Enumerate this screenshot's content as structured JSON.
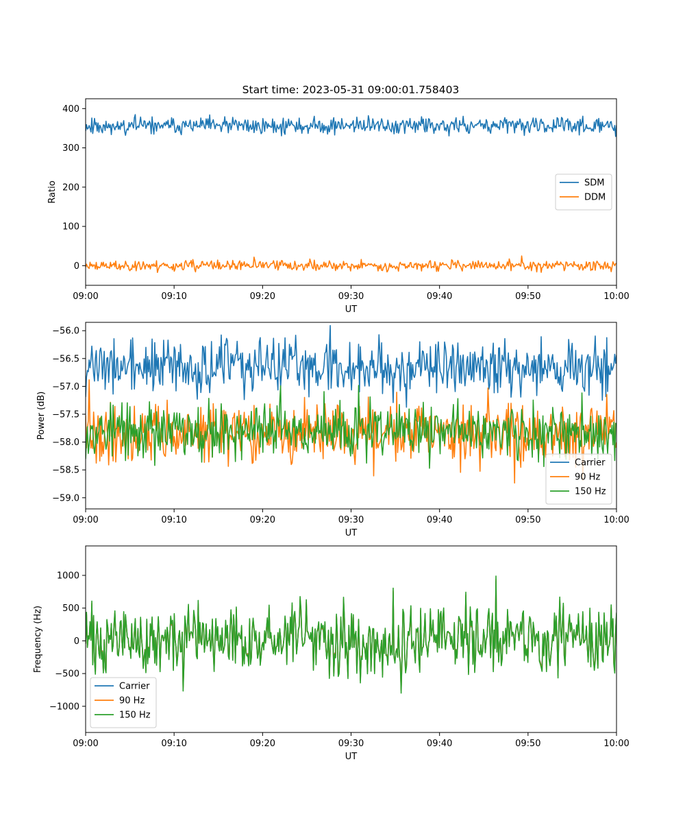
{
  "figure": {
    "title": "Start time: 2023-05-31 09:00:01.758403"
  },
  "chart_data": [
    {
      "type": "line",
      "xlabel": "UT",
      "ylabel": "Ratio",
      "xlim": [
        "09:00",
        "10:00"
      ],
      "xticks": [
        "09:00",
        "09:10",
        "09:20",
        "09:30",
        "09:40",
        "09:50",
        "10:00"
      ],
      "ylim": [
        -50,
        425
      ],
      "yticks": [
        0,
        100,
        200,
        300,
        400
      ],
      "ytick_labels": [
        "0",
        "100",
        "200",
        "300",
        "400"
      ],
      "legend_position": "center-right",
      "series": [
        {
          "name": "SDM",
          "color": "#1f77b4",
          "mean": 356,
          "amplitude": 13,
          "spike_amplitude": 45,
          "seed": 11
        },
        {
          "name": "DDM",
          "color": "#ff7f0e",
          "mean": 0,
          "amplitude": 8,
          "spike_amplitude": 30,
          "seed": 23
        }
      ]
    },
    {
      "type": "line",
      "xlabel": "UT",
      "ylabel": "Power (dB)",
      "xlim": [
        "09:00",
        "10:00"
      ],
      "xticks": [
        "09:00",
        "09:10",
        "09:20",
        "09:30",
        "09:40",
        "09:50",
        "10:00"
      ],
      "ylim": [
        -59.2,
        -55.85
      ],
      "yticks": [
        -59.0,
        -58.5,
        -58.0,
        -57.5,
        -57.0,
        -56.5,
        -56.0
      ],
      "ytick_labels": [
        "−59.0",
        "−58.5",
        "−58.0",
        "−57.5",
        "−57.0",
        "−56.5",
        "−56.0"
      ],
      "legend_position": "lower-right",
      "series": [
        {
          "name": "Carrier",
          "color": "#1f77b4",
          "mean": -56.65,
          "amplitude": 0.3,
          "spike_amplitude": 0.7,
          "seed": 37
        },
        {
          "name": "90 Hz",
          "color": "#ff7f0e",
          "mean": -57.85,
          "amplitude": 0.32,
          "spike_amplitude": 1.2,
          "seed": 41
        },
        {
          "name": "150 Hz",
          "color": "#2ca02c",
          "mean": -57.8,
          "amplitude": 0.3,
          "spike_amplitude": 1.2,
          "seed": 53
        }
      ]
    },
    {
      "type": "line",
      "xlabel": "UT",
      "ylabel": "Frequency (Hz)",
      "xlim": [
        "09:00",
        "10:00"
      ],
      "xticks": [
        "09:00",
        "09:10",
        "09:20",
        "09:30",
        "09:40",
        "09:50",
        "10:00"
      ],
      "ylim": [
        -1400,
        1450
      ],
      "yticks": [
        -1000,
        -500,
        0,
        500,
        1000
      ],
      "ytick_labels": [
        "−1000",
        "−500",
        "0",
        "500",
        "1000"
      ],
      "legend_position": "lower-left",
      "series": [
        {
          "name": "Carrier",
          "color": "#1f77b4",
          "offset": -30
        },
        {
          "name": "90 Hz",
          "color": "#ff7f0e",
          "offset": 0
        },
        {
          "name": "150 Hz",
          "color": "#2ca02c",
          "offset": 55
        }
      ],
      "base_series": {
        "mean": 0,
        "amplitude": 300,
        "spike_amplitude": 1300,
        "seed": 71
      }
    }
  ]
}
